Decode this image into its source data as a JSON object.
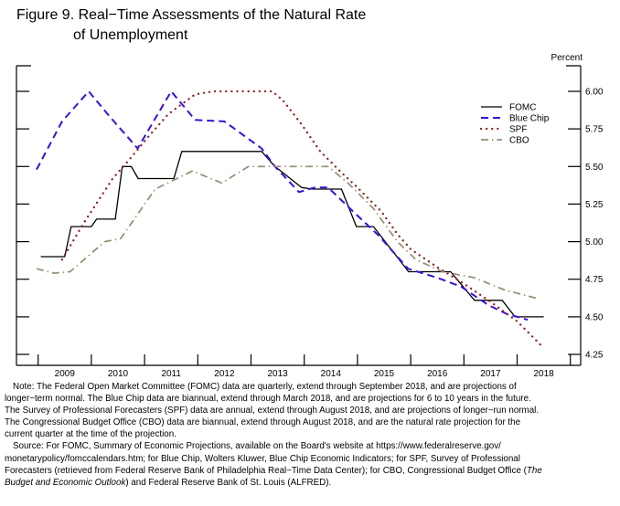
{
  "figure": {
    "title_line1": "Figure 9.  Real−Time Assessments of the Natural Rate",
    "title_line2": "of Unemployment"
  },
  "chart_data": {
    "type": "line",
    "title": "Figure 9. Real-Time Assessments of the Natural Rate of Unemployment",
    "xlabel": "",
    "ylabel": "Percent",
    "xlim": [
      2008.59,
      2019.19
    ],
    "ylim": [
      4.18,
      6.17
    ],
    "grid": false,
    "legend_position": "upper-right-inside",
    "y_ticks": [
      6.0,
      5.75,
      5.5,
      5.25,
      5.0,
      4.75,
      4.5,
      4.25
    ],
    "y_tick_labels": [
      "6.00",
      "5.75",
      "5.50",
      "5.25",
      "5.00",
      "4.75",
      "4.50",
      "4.25"
    ],
    "x_labels": [
      "2009",
      "2010",
      "2011",
      "2012",
      "2013",
      "2014",
      "2015",
      "2016",
      "2017",
      "2018"
    ],
    "series": [
      {
        "name": "FOMC",
        "color": "#000000",
        "style": "solid",
        "points": [
          [
            2009.05,
            4.9
          ],
          [
            2009.5,
            4.9
          ],
          [
            2009.62,
            5.1
          ],
          [
            2010.0,
            5.1
          ],
          [
            2010.1,
            5.15
          ],
          [
            2010.45,
            5.15
          ],
          [
            2010.58,
            5.5
          ],
          [
            2010.75,
            5.5
          ],
          [
            2010.88,
            5.42
          ],
          [
            2011.55,
            5.42
          ],
          [
            2011.7,
            5.6
          ],
          [
            2013.2,
            5.6
          ],
          [
            2013.45,
            5.5
          ],
          [
            2013.95,
            5.36
          ],
          [
            2014.15,
            5.35
          ],
          [
            2014.7,
            5.35
          ],
          [
            2014.98,
            5.1
          ],
          [
            2015.3,
            5.1
          ],
          [
            2015.96,
            4.8
          ],
          [
            2016.75,
            4.8
          ],
          [
            2017.2,
            4.61
          ],
          [
            2017.72,
            4.61
          ],
          [
            2017.96,
            4.5
          ],
          [
            2018.5,
            4.5
          ]
        ]
      },
      {
        "name": "Blue Chip",
        "color": "#3B0FD9",
        "style": "dashed",
        "points": [
          [
            2008.97,
            5.48
          ],
          [
            2009.45,
            5.8
          ],
          [
            2009.95,
            6.0
          ],
          [
            2010.35,
            5.83
          ],
          [
            2010.87,
            5.62
          ],
          [
            2011.5,
            6.0
          ],
          [
            2011.95,
            5.81
          ],
          [
            2012.5,
            5.8
          ],
          [
            2013.2,
            5.62
          ],
          [
            2013.45,
            5.5
          ],
          [
            2013.9,
            5.33
          ],
          [
            2014.2,
            5.36
          ],
          [
            2014.45,
            5.36
          ],
          [
            2014.95,
            5.19
          ],
          [
            2015.4,
            5.04
          ],
          [
            2015.95,
            4.82
          ],
          [
            2016.5,
            4.76
          ],
          [
            2016.95,
            4.7
          ],
          [
            2017.45,
            4.58
          ],
          [
            2017.8,
            4.52
          ],
          [
            2018.2,
            4.48
          ]
        ]
      },
      {
        "name": "SPF",
        "color": "#8B2424",
        "style": "dotted",
        "points": [
          [
            2009.45,
            4.88
          ],
          [
            2009.85,
            5.12
          ],
          [
            2010.4,
            5.42
          ],
          [
            2010.7,
            5.54
          ],
          [
            2011.1,
            5.71
          ],
          [
            2011.45,
            5.85
          ],
          [
            2011.95,
            5.98
          ],
          [
            2012.3,
            6.0
          ],
          [
            2013.4,
            6.0
          ],
          [
            2013.6,
            5.94
          ],
          [
            2013.95,
            5.78
          ],
          [
            2014.3,
            5.6
          ],
          [
            2014.7,
            5.46
          ],
          [
            2015.0,
            5.36
          ],
          [
            2015.45,
            5.2
          ],
          [
            2015.75,
            5.05
          ],
          [
            2016.0,
            4.95
          ],
          [
            2016.5,
            4.83
          ],
          [
            2017.0,
            4.72
          ],
          [
            2017.5,
            4.6
          ],
          [
            2018.0,
            4.47
          ],
          [
            2018.45,
            4.31
          ]
        ]
      },
      {
        "name": "CBO",
        "color": "#998A72",
        "style": "dashdot",
        "points": [
          [
            2008.97,
            4.82
          ],
          [
            2009.3,
            4.79
          ],
          [
            2009.6,
            4.8
          ],
          [
            2010.25,
            5.0
          ],
          [
            2010.55,
            5.02
          ],
          [
            2011.2,
            5.35
          ],
          [
            2011.9,
            5.47
          ],
          [
            2012.45,
            5.39
          ],
          [
            2012.95,
            5.5
          ],
          [
            2014.45,
            5.5
          ],
          [
            2014.85,
            5.38
          ],
          [
            2015.3,
            5.22
          ],
          [
            2015.75,
            5.0
          ],
          [
            2016.1,
            4.88
          ],
          [
            2016.6,
            4.8
          ],
          [
            2017.2,
            4.76
          ],
          [
            2017.75,
            4.68
          ],
          [
            2018.4,
            4.62
          ]
        ]
      }
    ]
  },
  "notes": {
    "line1": "Note: The Federal Open Market Committee (FOMC) data are quarterly, extend through September 2018, and are projections of",
    "line2": "longer−term normal. The Blue Chip data are biannual, extend through March 2018, and are projections for 6 to 10 years in the future.",
    "line3": "The Survey of Professional Forecasters (SPF) data are annual, extend through August 2018, and are projections of longer−run normal.",
    "line4": "The Congressional Budget Office (CBO) data are biannual, extend through August 2018, and are the natural rate projection for the",
    "line5": "current quarter at the time of the projection.",
    "line6": "Source:  For FOMC, Summary of Economic Projections, available on the Board's website at https://www.federalreserve.gov/",
    "line7": "monetarypolicy/fomccalendars.htm; for Blue Chip, Wolters Kluwer, Blue Chip Economic Indicators; for SPF, Survey of Professional",
    "line8_pre": "Forecasters (retrieved from Federal Reserve Bank of Philadelphia Real−Time Data Center); for CBO, Congressional Budget Office (",
    "line8_italic": "The",
    "line9_italic": "Budget and Economic Outlook",
    "line9_post": ") and Federal Reserve Bank of St. Louis (ALFRED)."
  }
}
